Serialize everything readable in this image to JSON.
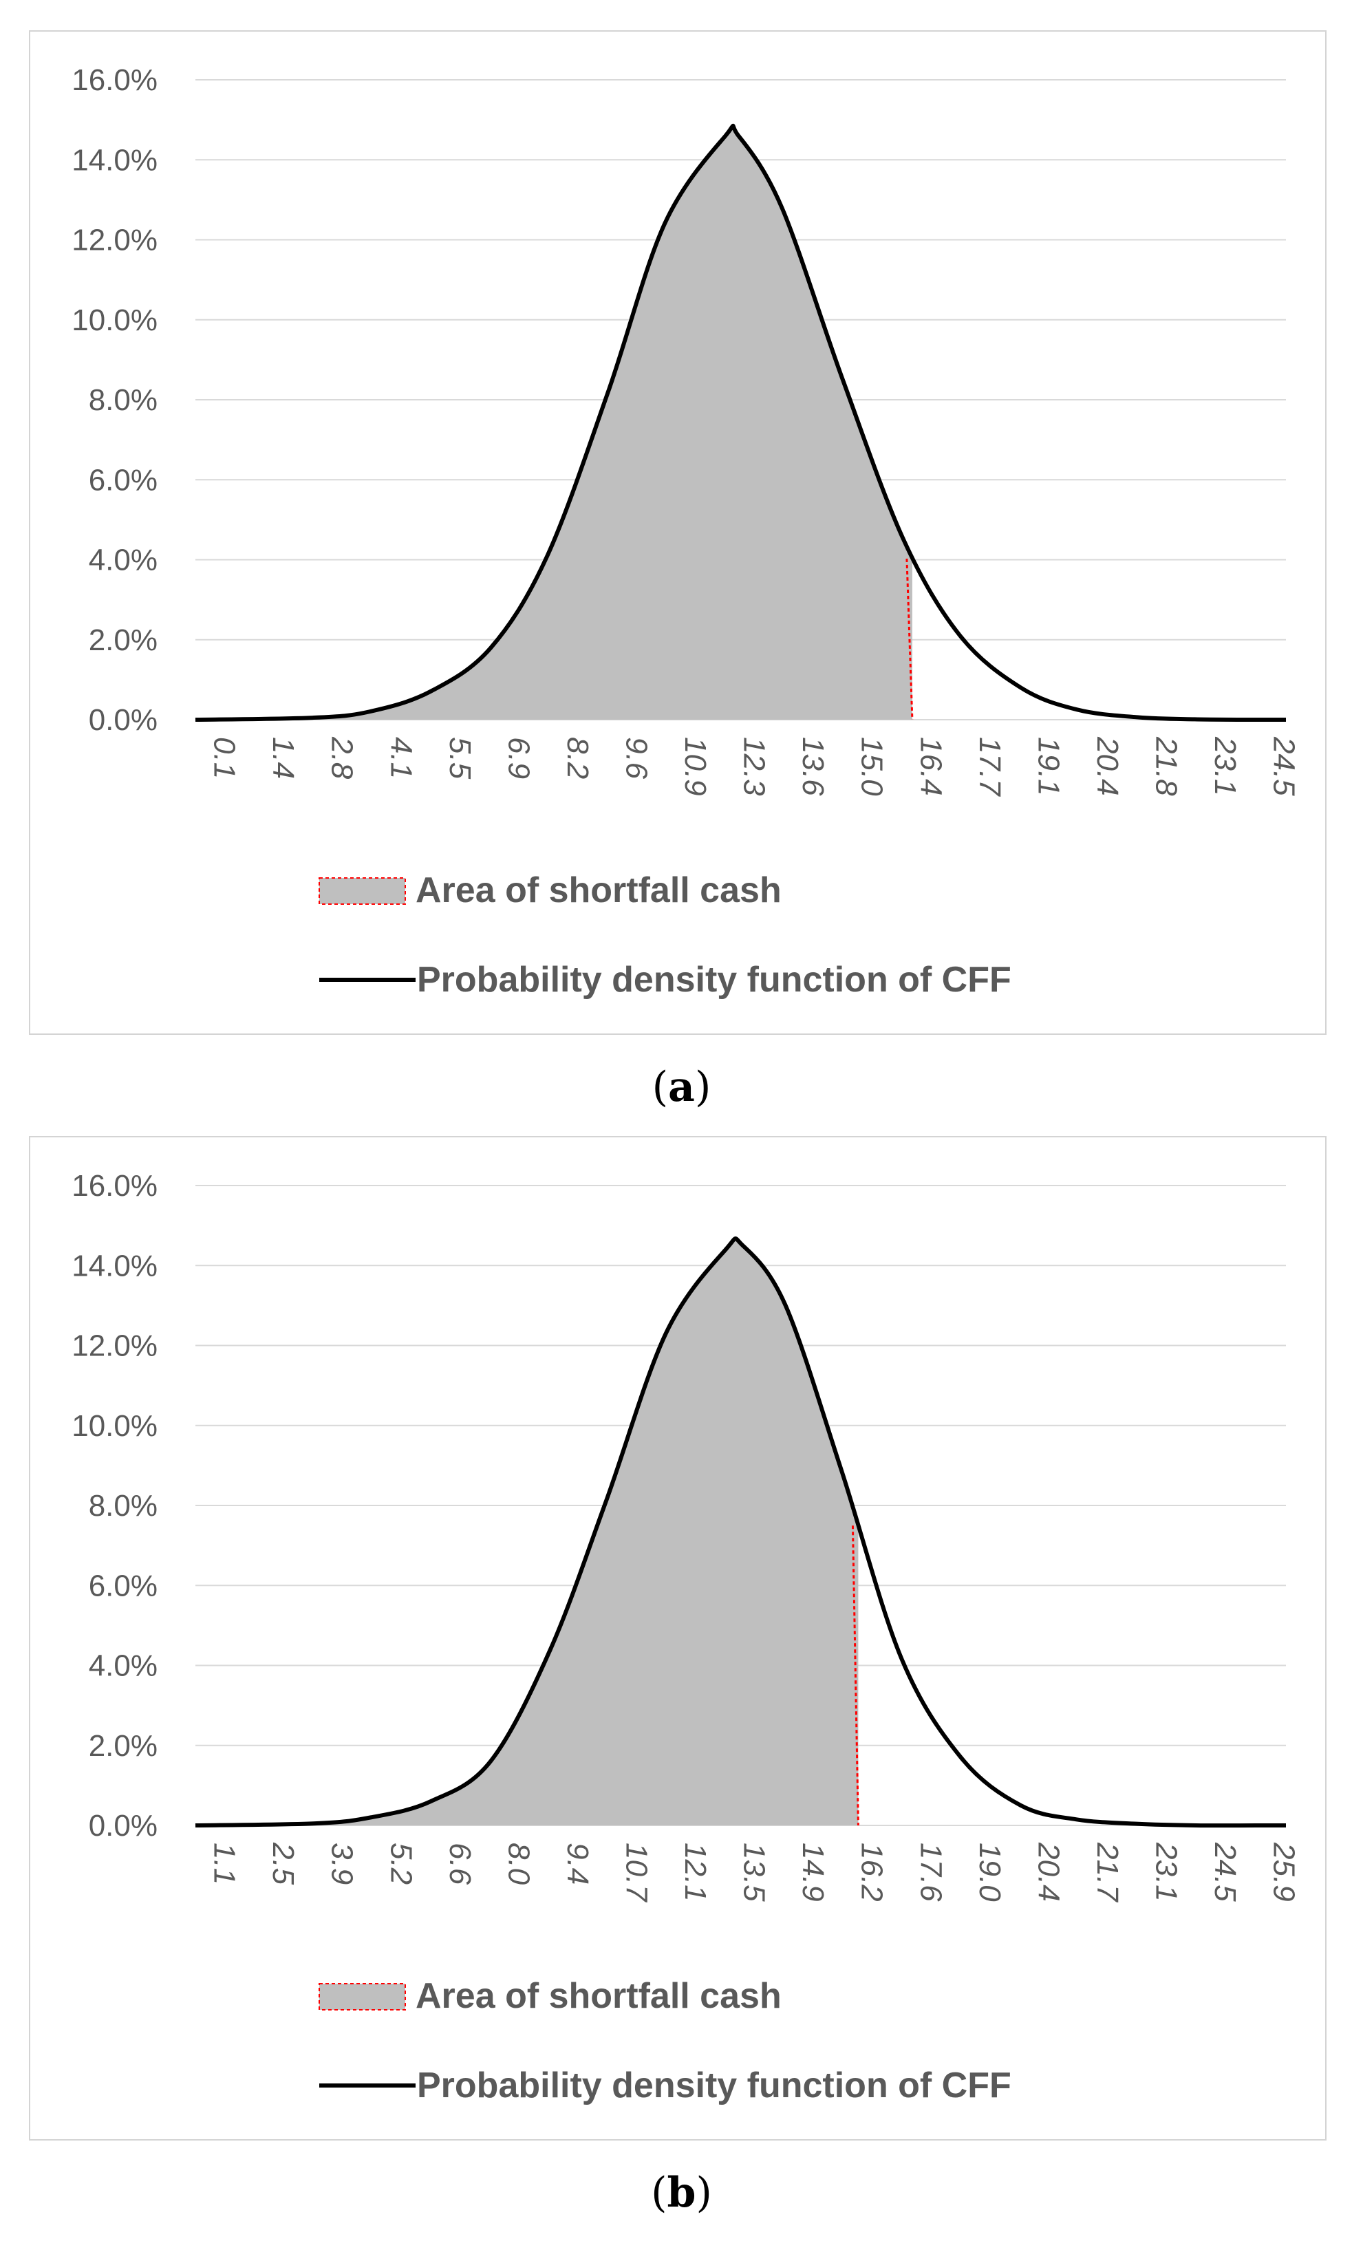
{
  "panels": [
    {
      "caption_letter": "a"
    },
    {
      "caption_letter": "b"
    }
  ],
  "colors": {
    "fill": "#bfbfbf",
    "curve": "#000000",
    "shortfall_line": "#ff0000",
    "gridline": "#d9d9d9",
    "axis_text": "#595959"
  },
  "chart_data": [
    {
      "type": "area",
      "ylim": [
        0,
        16
      ],
      "y_ticks": [
        "0.0%",
        "2.0%",
        "4.0%",
        "6.0%",
        "8.0%",
        "10.0%",
        "12.0%",
        "14.0%",
        "16.0%"
      ],
      "x_range": [
        0.1,
        25.2
      ],
      "x_ticks": [
        "0.1",
        "1.4",
        "2.8",
        "4.1",
        "5.5",
        "6.9",
        "8.2",
        "9.6",
        "10.9",
        "12.3",
        "13.6",
        "15.0",
        "16.4",
        "17.7",
        "19.1",
        "20.4",
        "21.8",
        "23.1",
        "24.5"
      ],
      "grid": true,
      "legend_position": "bottom",
      "series": [
        {
          "name": "Probability density function of CFF",
          "x": [
            0.1,
            2.8,
            4.1,
            5.5,
            6.9,
            8.2,
            9.6,
            10.9,
            12.3,
            12.6,
            13.6,
            15.0,
            16.4,
            17.7,
            19.1,
            20.4,
            21.8,
            23.1,
            24.5,
            25.2
          ],
          "y": [
            0.0,
            0.05,
            0.2,
            0.7,
            1.8,
            4.1,
            8.2,
            12.4,
            14.6,
            14.6,
            12.8,
            8.5,
            4.5,
            2.1,
            0.8,
            0.25,
            0.06,
            0.01,
            0.0,
            0.0
          ]
        },
        {
          "name": "Area of shortfall cash",
          "x_end": 16.6
        }
      ]
    },
    {
      "type": "area",
      "ylim": [
        0,
        16
      ],
      "y_ticks": [
        "0.0%",
        "2.0%",
        "4.0%",
        "6.0%",
        "8.0%",
        "10.0%",
        "12.0%",
        "14.0%",
        "16.0%"
      ],
      "x_range": [
        1.1,
        26.6
      ],
      "x_ticks": [
        "1.1",
        "2.5",
        "3.9",
        "5.2",
        "6.6",
        "8.0",
        "9.4",
        "10.7",
        "12.1",
        "13.5",
        "14.9",
        "16.2",
        "17.6",
        "19.0",
        "20.4",
        "21.7",
        "23.1",
        "24.5",
        "25.9"
      ],
      "grid": true,
      "legend_position": "bottom",
      "series": [
        {
          "name": "Probability density function of CFF",
          "x": [
            1.1,
            3.9,
            5.2,
            6.6,
            8.0,
            9.4,
            10.7,
            12.1,
            13.5,
            13.9,
            14.9,
            16.2,
            17.6,
            19.0,
            20.4,
            21.7,
            23.1,
            24.5,
            25.9,
            26.6
          ],
          "y": [
            0.0,
            0.05,
            0.2,
            0.6,
            1.6,
            4.4,
            8.1,
            12.3,
            14.4,
            14.5,
            13.0,
            8.9,
            4.2,
            1.7,
            0.5,
            0.15,
            0.04,
            0.0,
            0.0,
            0.0
          ]
        },
        {
          "name": "Area of shortfall cash",
          "x_end": 16.6
        }
      ]
    }
  ]
}
